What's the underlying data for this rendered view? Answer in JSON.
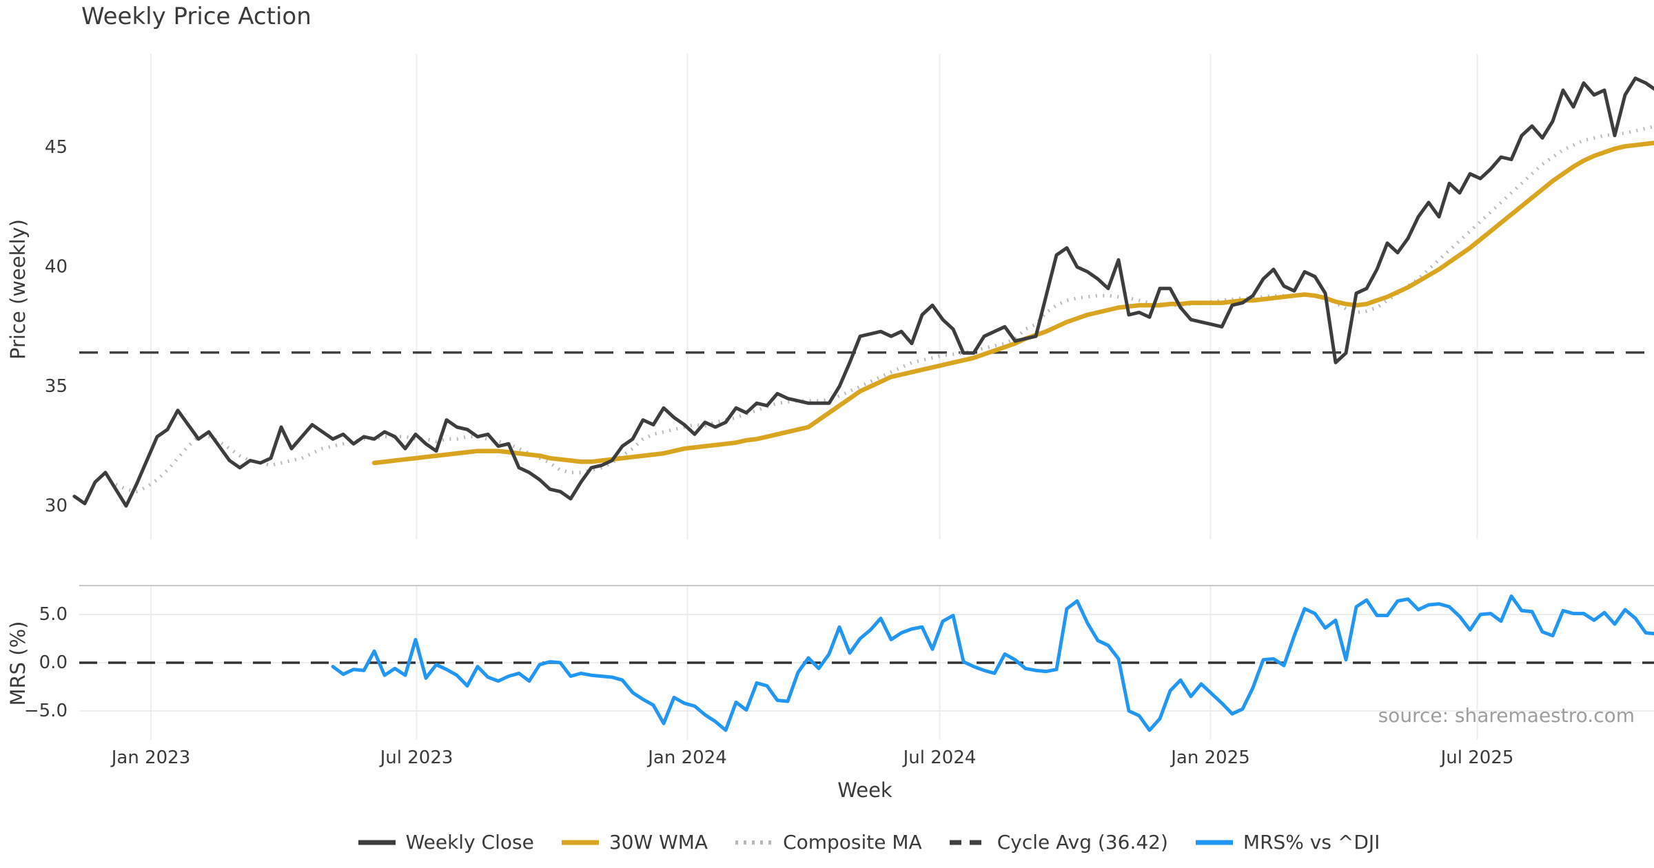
{
  "title": "Weekly Price Action",
  "source_note": "source: sharemaestro.com",
  "axes": {
    "x_label": "Week",
    "price_y_label": "Price (weekly)",
    "mrs_y_label": "MRS (%)",
    "price_y_ticks": [
      {
        "label": "30",
        "value": 30
      },
      {
        "label": "35",
        "value": 35
      },
      {
        "label": "40",
        "value": 40
      },
      {
        "label": "45",
        "value": 45
      }
    ],
    "mrs_y_ticks": [
      {
        "label": "5.0",
        "value": 5
      },
      {
        "label": "0.0",
        "value": 0
      },
      {
        "label": "−5.0",
        "value": -5
      }
    ],
    "x_ticks": [
      {
        "label": "Jan 2023",
        "week": 7.4
      },
      {
        "label": "Jul 2023",
        "week": 33.1
      },
      {
        "label": "Jan 2024",
        "week": 59.3
      },
      {
        "label": "Jul 2024",
        "week": 83.7
      },
      {
        "label": "Jan 2025",
        "week": 109.9
      },
      {
        "label": "Jul 2025",
        "week": 135.7
      }
    ]
  },
  "legend": [
    {
      "label": "Weekly Close",
      "color": "#3d3d3d",
      "dash": "solid"
    },
    {
      "label": "30W WMA",
      "color": "#d9a521",
      "dash": "solid"
    },
    {
      "label": "Composite MA",
      "color": "#b9b9b9",
      "dash": "dotted"
    },
    {
      "label": "Cycle Avg (36.42)",
      "color": "#404040",
      "dash": "dashed"
    },
    {
      "label": "MRS% vs ^DJI",
      "color": "#2196f3",
      "dash": "solid"
    }
  ],
  "colors": {
    "weekly_close": "#3d3d3d",
    "wma": "#d9a521",
    "composite": "#b9b9b9",
    "cycle_avg": "#404040",
    "mrs": "#2196f3",
    "gridline": "#ededed",
    "panel_spine": "#c9c9c9",
    "tick_text": "#3a3a3a"
  },
  "chart_data": {
    "type": "line",
    "title": "Weekly Price Action",
    "xlabel": "Week",
    "x_unit": "week_index",
    "x_range_weeks": [
      0,
      153
    ],
    "panels": [
      {
        "name": "price",
        "ylabel": "Price (weekly)",
        "ylim": [
          28.6,
          49.3
        ],
        "yticks": [
          30,
          35,
          40,
          45
        ],
        "cycle_avg": 36.42,
        "series": [
          {
            "name": "Weekly Close",
            "start_week": 0,
            "color": "#3d3d3d",
            "style": "solid",
            "values": [
              30.4,
              30.1,
              31.0,
              31.4,
              30.7,
              30.0,
              30.9,
              31.9,
              32.9,
              33.2,
              34.0,
              33.4,
              32.8,
              33.1,
              32.5,
              31.9,
              31.6,
              31.9,
              31.8,
              32.0,
              33.3,
              32.4,
              32.9,
              33.4,
              33.1,
              32.8,
              33.0,
              32.6,
              32.9,
              32.8,
              33.1,
              32.9,
              32.4,
              33.0,
              32.6,
              32.3,
              33.6,
              33.3,
              33.2,
              32.9,
              33.0,
              32.5,
              32.6,
              31.6,
              31.4,
              31.1,
              30.7,
              30.6,
              30.3,
              31.0,
              31.6,
              31.7,
              31.9,
              32.5,
              32.8,
              33.6,
              33.4,
              34.1,
              33.7,
              33.4,
              33.0,
              33.5,
              33.3,
              33.5,
              34.1,
              33.9,
              34.3,
              34.2,
              34.7,
              34.5,
              34.4,
              34.3,
              34.3,
              34.3,
              35.0,
              36.0,
              37.1,
              37.2,
              37.3,
              37.1,
              37.3,
              36.8,
              38.0,
              38.4,
              37.8,
              37.4,
              36.4,
              36.4,
              37.1,
              37.3,
              37.5,
              36.9,
              37.0,
              37.1,
              38.8,
              40.5,
              40.8,
              40.0,
              39.8,
              39.5,
              39.1,
              40.3,
              38.0,
              38.1,
              37.9,
              39.1,
              39.1,
              38.3,
              37.8,
              37.7,
              37.6,
              37.5,
              38.4,
              38.5,
              38.8,
              39.5,
              39.9,
              39.2,
              39.0,
              39.8,
              39.6,
              38.9,
              36.0,
              36.4,
              38.9,
              39.1,
              39.9,
              41.0,
              40.6,
              41.2,
              42.1,
              42.7,
              42.1,
              43.5,
              43.1,
              43.9,
              43.7,
              44.1,
              44.6,
              44.5,
              45.5,
              45.9,
              45.4,
              46.1,
              47.4,
              46.7,
              47.7,
              47.2,
              47.4,
              45.5,
              47.2,
              47.9,
              47.7,
              47.4
            ]
          },
          {
            "name": "30W WMA",
            "start_week": 29,
            "color": "#d9a521",
            "style": "solid",
            "values": [
              31.8,
              31.85,
              31.9,
              31.95,
              32.0,
              32.05,
              32.1,
              32.15,
              32.2,
              32.25,
              32.3,
              32.3,
              32.3,
              32.25,
              32.2,
              32.15,
              32.1,
              32.0,
              31.95,
              31.9,
              31.85,
              31.85,
              31.9,
              31.95,
              32.0,
              32.05,
              32.1,
              32.15,
              32.2,
              32.3,
              32.4,
              32.45,
              32.5,
              32.55,
              32.6,
              32.65,
              32.75,
              32.8,
              32.9,
              33.0,
              33.1,
              33.2,
              33.3,
              33.6,
              33.9,
              34.2,
              34.5,
              34.8,
              35.0,
              35.2,
              35.4,
              35.5,
              35.6,
              35.7,
              35.8,
              35.9,
              36.0,
              36.1,
              36.2,
              36.35,
              36.5,
              36.65,
              36.8,
              37.0,
              37.15,
              37.3,
              37.5,
              37.7,
              37.85,
              38.0,
              38.1,
              38.2,
              38.3,
              38.35,
              38.4,
              38.4,
              38.4,
              38.45,
              38.45,
              38.5,
              38.5,
              38.5,
              38.5,
              38.55,
              38.6,
              38.6,
              38.65,
              38.7,
              38.75,
              38.8,
              38.85,
              38.8,
              38.7,
              38.55,
              38.45,
              38.4,
              38.45,
              38.6,
              38.75,
              38.95,
              39.15,
              39.4,
              39.65,
              39.9,
              40.2,
              40.5,
              40.8,
              41.15,
              41.5,
              41.85,
              42.2,
              42.55,
              42.9,
              43.25,
              43.6,
              43.9,
              44.2,
              44.45,
              44.65,
              44.8,
              44.95,
              45.05,
              45.1,
              45.15,
              45.2
            ]
          },
          {
            "name": "Composite MA",
            "start_week": 4,
            "color": "#b9b9b9",
            "style": "dotted",
            "values": [
              30.9,
              30.7,
              30.6,
              30.8,
              31.1,
              31.5,
              32.0,
              32.5,
              32.9,
              32.9,
              32.7,
              32.4,
              32.1,
              31.9,
              31.8,
              31.7,
              31.8,
              31.9,
              32.0,
              32.2,
              32.4,
              32.5,
              32.6,
              32.7,
              32.8,
              32.8,
              32.9,
              32.9,
              32.9,
              32.8,
              32.8,
              32.7,
              32.8,
              32.8,
              32.9,
              32.9,
              32.8,
              32.7,
              32.6,
              32.4,
              32.2,
              32.0,
              31.8,
              31.5,
              31.4,
              31.4,
              31.5,
              31.6,
              31.8,
              32.1,
              32.4,
              32.8,
              33.0,
              33.1,
              33.2,
              33.3,
              33.4,
              33.35,
              33.5,
              33.6,
              33.7,
              33.85,
              34.0,
              34.15,
              34.3,
              34.35,
              34.4,
              34.4,
              34.4,
              34.45,
              34.6,
              34.8,
              35.0,
              35.2,
              35.4,
              35.6,
              35.8,
              36.0,
              36.1,
              36.2,
              36.3,
              36.35,
              36.4,
              36.5,
              36.6,
              36.7,
              36.8,
              37.0,
              37.4,
              37.6,
              38.1,
              38.4,
              38.6,
              38.7,
              38.75,
              38.8,
              38.8,
              38.75,
              38.7,
              38.6,
              38.5,
              38.45,
              38.4,
              38.4,
              38.45,
              38.5,
              38.55,
              38.6,
              38.65,
              38.7,
              38.7,
              38.75,
              38.8,
              38.8,
              38.8,
              38.85,
              38.8,
              38.7,
              38.5,
              38.25,
              38.1,
              38.15,
              38.3,
              38.6,
              38.9,
              39.2,
              39.5,
              39.9,
              40.3,
              40.7,
              41.1,
              41.5,
              41.9,
              42.3,
              42.7,
              43.1,
              43.5,
              43.9,
              44.3,
              44.6,
              44.9,
              45.1,
              45.3,
              45.4,
              45.5,
              45.55,
              45.6,
              45.7,
              45.8,
              45.9
            ]
          }
        ]
      },
      {
        "name": "mrs",
        "ylabel": "MRS (%)",
        "ylim": [
          -8,
          8
        ],
        "yticks": [
          5,
          0,
          -5
        ],
        "zero_line": 0,
        "series": [
          {
            "name": "MRS% vs ^DJI",
            "start_week": 25,
            "color": "#2196f3",
            "style": "solid",
            "values": [
              -0.4,
              -1.2,
              -0.7,
              -0.8,
              1.2,
              -1.3,
              -0.6,
              -1.3,
              2.4,
              -1.6,
              -0.2,
              -0.7,
              -1.3,
              -2.4,
              -0.4,
              -1.5,
              -1.9,
              -1.4,
              -1.1,
              -1.9,
              -0.2,
              0.1,
              0.0,
              -1.4,
              -1.1,
              -1.3,
              -1.4,
              -1.5,
              -1.8,
              -3.1,
              -3.8,
              -4.4,
              -6.3,
              -3.6,
              -4.2,
              -4.5,
              -5.4,
              -6.1,
              -7.0,
              -4.1,
              -4.9,
              -2.1,
              -2.4,
              -3.9,
              -4.0,
              -1.0,
              0.5,
              -0.6,
              0.9,
              3.7,
              1.0,
              2.5,
              3.4,
              4.6,
              2.4,
              3.1,
              3.5,
              3.7,
              1.4,
              4.3,
              4.9,
              0.1,
              -0.4,
              -0.8,
              -1.1,
              0.9,
              0.3,
              -0.6,
              -0.8,
              -0.9,
              -0.7,
              5.6,
              6.4,
              4.1,
              2.3,
              1.8,
              0.4,
              -5.0,
              -5.5,
              -7.0,
              -5.8,
              -2.9,
              -1.8,
              -3.5,
              -2.2,
              -3.2,
              -4.2,
              -5.3,
              -4.8,
              -2.6,
              0.3,
              0.4,
              -0.3,
              2.8,
              5.6,
              5.1,
              3.6,
              4.4,
              0.3,
              5.8,
              6.5,
              4.9,
              4.9,
              6.4,
              6.6,
              5.5,
              6.0,
              6.1,
              5.8,
              4.8,
              3.4,
              5.0,
              5.1,
              4.3,
              6.9,
              5.4,
              5.3,
              3.2,
              2.8,
              5.4,
              5.1,
              5.1,
              4.4,
              5.2,
              4.0,
              5.5,
              4.6,
              3.1,
              3.0
            ]
          }
        ]
      }
    ]
  }
}
